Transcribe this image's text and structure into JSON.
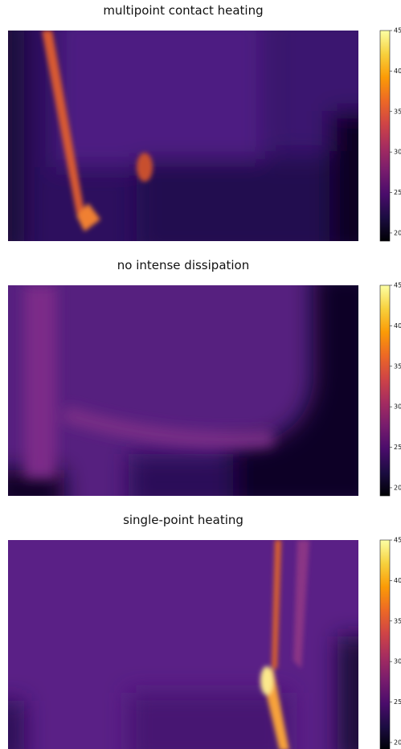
{
  "chart_data": [
    {
      "type": "image",
      "title": "multipoint contact heating",
      "colormap": "inferno",
      "clim": [
        19,
        45
      ],
      "cticks": [
        20,
        25,
        30,
        35,
        40,
        45
      ]
    },
    {
      "type": "image",
      "title": "no intense dissipation",
      "colormap": "inferno",
      "clim": [
        19,
        45
      ],
      "cticks": [
        20,
        25,
        30,
        35,
        40,
        45
      ]
    },
    {
      "type": "image",
      "title": "single-point heating",
      "colormap": "inferno",
      "clim": [
        19,
        45
      ],
      "cticks": [
        20,
        25,
        30,
        35,
        40,
        45
      ]
    }
  ]
}
